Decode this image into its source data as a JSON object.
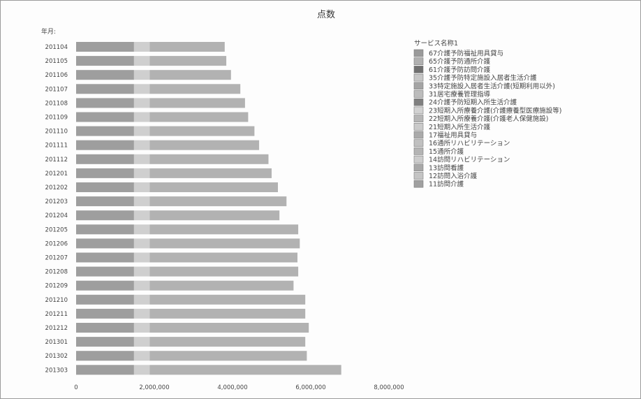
{
  "chart_data": {
    "type": "bar",
    "orientation": "horizontal",
    "stacked": true,
    "title": "点数",
    "ylabel": "年月:",
    "xlim": [
      0,
      8000000
    ],
    "x_ticks": [
      "0",
      "2,000,000",
      "4,000,000",
      "6,000,000",
      "8,000,000"
    ],
    "x_tick_values": [
      0,
      2000000,
      4000000,
      6000000,
      8000000
    ],
    "grid": false,
    "legend_position": "right",
    "legend_title": "サービス名称1",
    "legend": [
      "67介護予防福祉用具貸与",
      "65介護予防通所介護",
      "61介護予防訪問介護",
      "35介護予防特定施設入居者生活介護",
      "33特定施設入居者生活介護(短期利用以外)",
      "31居宅療養管理指導",
      "24介護予防短期入所生活介護",
      "23短期入所療養介護(介護療養型医療施設等)",
      "22短期入所療養介護(介護老人保健施設)",
      "21短期入所生活介護",
      "17福祉用具貸与",
      "16通所リハビリテーション",
      "15通所介護",
      "14訪問リハビリテーション",
      "13訪問看護",
      "12訪問入浴介護",
      "11訪問介護"
    ],
    "colors": [
      "#9a9a9a",
      "#b0b0b0",
      "#707070",
      "#c6c6c6",
      "#a4a4a4",
      "#bcbcbc",
      "#808080",
      "#d2d2d2",
      "#b6b6b6",
      "#cacaca",
      "#aaaaaa",
      "#c0c0c0",
      "#b4b4b4",
      "#cccccc",
      "#a8a8a8",
      "#c4c4c4",
      "#a0a0a0"
    ],
    "categories": [
      "201104",
      "201105",
      "201106",
      "201107",
      "201108",
      "201109",
      "201110",
      "201111",
      "201112",
      "201201",
      "201202",
      "201203",
      "201204",
      "201205",
      "201206",
      "201207",
      "201208",
      "201209",
      "201210",
      "201211",
      "201212",
      "201301",
      "201302",
      "201303"
    ],
    "totals": [
      3800000,
      3840000,
      3960000,
      4200000,
      4320000,
      4400000,
      4560000,
      4680000,
      4920000,
      5000000,
      5160000,
      5380000,
      5200000,
      5680000,
      5720000,
      5660000,
      5680000,
      5560000,
      5860000,
      5860000,
      5950000,
      5860000,
      5900000,
      6780000
    ],
    "segments_approx": [
      [
        1480000,
        400000,
        1920000,
        0
      ],
      [
        1480000,
        400000,
        1960000,
        0
      ],
      [
        1480000,
        400000,
        2080000,
        0
      ],
      [
        1480000,
        400000,
        2320000,
        0
      ],
      [
        1480000,
        400000,
        2440000,
        0
      ],
      [
        1480000,
        400000,
        2520000,
        0
      ],
      [
        1480000,
        400000,
        2680000,
        0
      ],
      [
        1480000,
        400000,
        2800000,
        0
      ],
      [
        1480000,
        400000,
        3040000,
        0
      ],
      [
        1480000,
        400000,
        3120000,
        0
      ],
      [
        1480000,
        400000,
        3280000,
        0
      ],
      [
        1480000,
        400000,
        3500000,
        0
      ],
      [
        1480000,
        400000,
        3320000,
        0
      ],
      [
        1480000,
        400000,
        3800000,
        0
      ],
      [
        1480000,
        400000,
        3840000,
        0
      ],
      [
        1480000,
        400000,
        3780000,
        0
      ],
      [
        1480000,
        400000,
        3800000,
        0
      ],
      [
        1480000,
        400000,
        3680000,
        0
      ],
      [
        1480000,
        400000,
        3980000,
        0
      ],
      [
        1480000,
        400000,
        3980000,
        0
      ],
      [
        1480000,
        400000,
        4070000,
        0
      ],
      [
        1480000,
        400000,
        3980000,
        0
      ],
      [
        1480000,
        400000,
        4020000,
        0
      ],
      [
        1480000,
        400000,
        4900000,
        0
      ]
    ]
  }
}
